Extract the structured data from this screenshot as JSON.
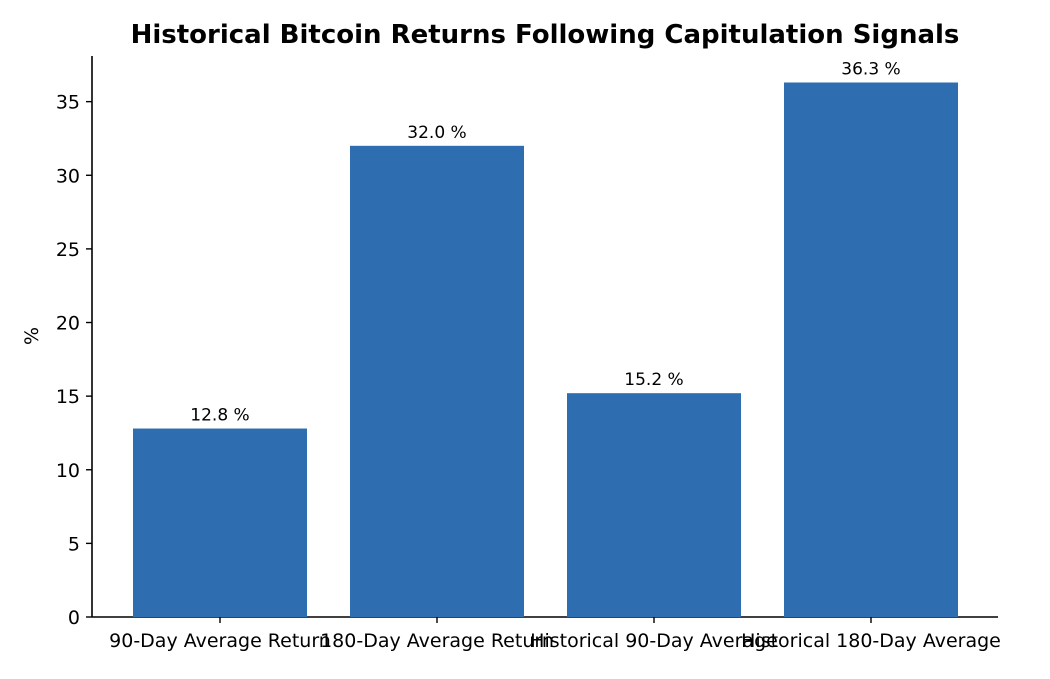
{
  "chart_data": {
    "type": "bar",
    "title": "Historical Bitcoin Returns Following Capitulation Signals",
    "xlabel": "",
    "ylabel": "%",
    "categories": [
      "90-Day Average Return",
      "180-Day Average Return",
      "Historical 90-Day Average",
      "Historical 180-Day Average"
    ],
    "values": [
      12.8,
      32.0,
      15.2,
      36.3
    ],
    "data_labels": [
      "12.8 %",
      "32.0 %",
      "15.2 %",
      "36.3 %"
    ],
    "ylim": [
      0,
      38.1
    ],
    "yticks": [
      0,
      5,
      10,
      15,
      20,
      25,
      30,
      35
    ],
    "grid": false,
    "legend": "none",
    "bar_color": "#2d6db0"
  }
}
